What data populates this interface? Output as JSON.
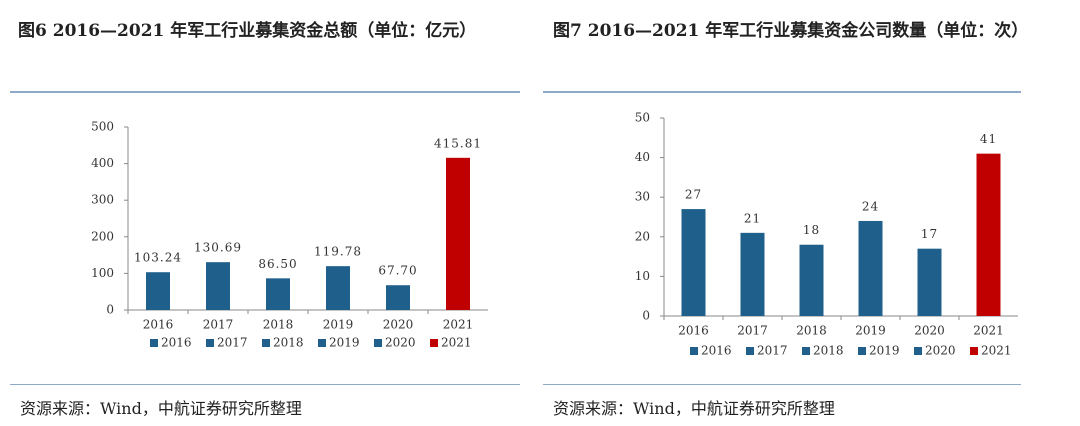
{
  "chart_data": [
    {
      "type": "bar",
      "title": "图6 2016—2021 年军工行业募集资金总额（单位：亿元）",
      "categories": [
        "2016",
        "2017",
        "2018",
        "2019",
        "2020",
        "2021"
      ],
      "values": [
        103.24,
        130.69,
        86.5,
        119.78,
        67.7,
        415.81
      ],
      "value_labels": [
        "103.24",
        "130.69",
        "86.50",
        "119.78",
        "67.70",
        "415.81"
      ],
      "colors": [
        "#1f5f8b",
        "#1f5f8b",
        "#1f5f8b",
        "#1f5f8b",
        "#1f5f8b",
        "#c00000"
      ],
      "ylim": [
        0,
        500
      ],
      "yticks": [
        0,
        100,
        200,
        300,
        400,
        500
      ],
      "source": "资源来源：Wind，中航证券研究所整理"
    },
    {
      "type": "bar",
      "title": "图7 2016—2021 年军工行业募集资金公司数量（单位：次）",
      "categories": [
        "2016",
        "2017",
        "2018",
        "2019",
        "2020",
        "2021"
      ],
      "values": [
        27,
        21,
        18,
        24,
        17,
        41
      ],
      "colors": [
        "#1f5f8b",
        "#1f5f8b",
        "#1f5f8b",
        "#1f5f8b",
        "#1f5f8b",
        "#c00000"
      ],
      "ylim": [
        0,
        50
      ],
      "yticks": [
        0,
        10,
        20,
        30,
        40,
        50
      ],
      "source": "资源来源：Wind，中航证券研究所整理"
    }
  ]
}
